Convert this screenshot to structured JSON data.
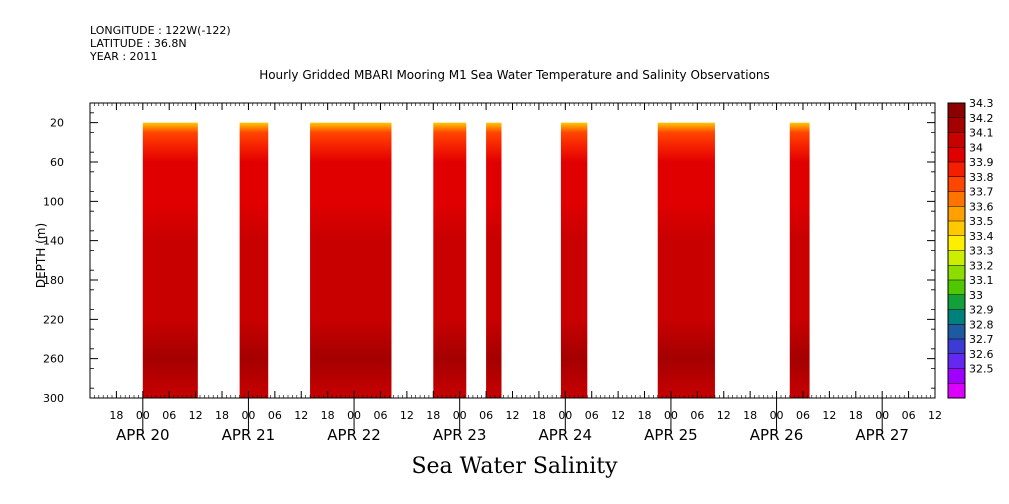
{
  "meta": {
    "longitude": "LONGITUDE : 122W(-122)",
    "latitude": "LATITUDE : 36.8N",
    "year": "YEAR : 2011"
  },
  "chart_data": {
    "type": "heatmap",
    "title": "Hourly Gridded MBARI Mooring M1 Sea Water Temperature and Salinity Observations",
    "footer_title": "Sea Water Salinity",
    "ylabel": "DEPTH (m)",
    "ylim": [
      300,
      0
    ],
    "yticks": [
      20,
      60,
      100,
      140,
      180,
      220,
      260,
      300
    ],
    "xlim": [
      "APR 19 12:00",
      "APR 27 12:00"
    ],
    "hour_ticks": [
      "18",
      "00",
      "06",
      "12",
      "18",
      "00",
      "06",
      "12",
      "18",
      "00",
      "06",
      "12",
      "18",
      "00",
      "06",
      "12",
      "18",
      "00",
      "06",
      "12",
      "18",
      "00",
      "06",
      "12",
      "18",
      "00",
      "06",
      "12",
      "18",
      "00",
      "06",
      "12"
    ],
    "date_labels": [
      {
        "label": "APR 20",
        "hour": 12
      },
      {
        "label": "APR 21",
        "hour": 36
      },
      {
        "label": "APR 22",
        "hour": 60
      },
      {
        "label": "APR 23",
        "hour": 84
      },
      {
        "label": "APR 24",
        "hour": 108
      },
      {
        "label": "APR 25",
        "hour": 132
      },
      {
        "label": "APR 26",
        "hour": 156
      },
      {
        "label": "APR 27",
        "hour": 180
      }
    ],
    "data_depth_range": [
      20,
      300
    ],
    "segments": [
      {
        "start_hour": 12,
        "end_hour": 24.5
      },
      {
        "start_hour": 34,
        "end_hour": 40.5
      },
      {
        "start_hour": 50,
        "end_hour": 68.5
      },
      {
        "start_hour": 78,
        "end_hour": 85.5
      },
      {
        "start_hour": 90,
        "end_hour": 93.5
      },
      {
        "start_hour": 107,
        "end_hour": 113
      },
      {
        "start_hour": 129,
        "end_hour": 142
      },
      {
        "start_hour": 159,
        "end_hour": 163.5
      }
    ],
    "depth_profile": [
      {
        "depth": 20,
        "salinity": 33.55
      },
      {
        "depth": 30,
        "salinity": 33.8
      },
      {
        "depth": 45,
        "salinity": 33.95
      },
      {
        "depth": 60,
        "salinity": 34.02
      },
      {
        "depth": 80,
        "salinity": 34.06
      },
      {
        "depth": 100,
        "salinity": 34.08
      },
      {
        "depth": 140,
        "salinity": 34.12
      },
      {
        "depth": 180,
        "salinity": 34.12
      },
      {
        "depth": 220,
        "salinity": 34.17
      },
      {
        "depth": 260,
        "salinity": 34.22
      },
      {
        "depth": 300,
        "salinity": 34.16
      }
    ],
    "colorbar": {
      "levels": [
        "34.3",
        "34.2",
        "34.1",
        "34",
        "33.9",
        "33.8",
        "33.7",
        "33.6",
        "33.5",
        "33.4",
        "33.3",
        "33.2",
        "33.1",
        "33",
        "32.9",
        "32.8",
        "32.7",
        "32.6",
        "32.5"
      ],
      "colors": [
        "#8c0000",
        "#a50000",
        "#c80000",
        "#e10000",
        "#f51e00",
        "#ff4600",
        "#ff7300",
        "#ffa000",
        "#ffc800",
        "#ffee00",
        "#ccee00",
        "#8edd00",
        "#4fc800",
        "#11a03a",
        "#00807a",
        "#1e5aa0",
        "#3c3cd2",
        "#6428f0",
        "#a000ff",
        "#dc00ff"
      ]
    }
  }
}
